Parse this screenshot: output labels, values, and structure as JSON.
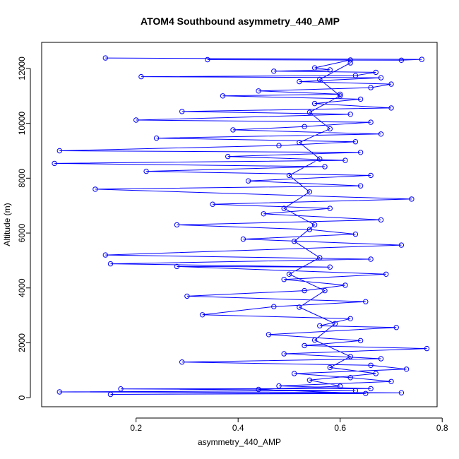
{
  "chart_data": {
    "type": "line",
    "title": "ATOM4 Southbound asymmetry_440_AMP",
    "xlabel": "asymmetry_440_AMP",
    "ylabel": "Altitude (m)",
    "xlim": [
      0.015,
      0.79
    ],
    "ylim": [
      -330,
      12950
    ],
    "x_ticks": [
      0.2,
      0.4,
      0.6,
      0.8
    ],
    "x_tick_labels": [
      "0.2",
      "0.4",
      "0.6",
      "0.8"
    ],
    "y_ticks": [
      0,
      2000,
      4000,
      6000,
      8000,
      10000,
      12000
    ],
    "y_tick_labels": [
      "0",
      "2000",
      "4000",
      "6000",
      "8000",
      "10000",
      "12000"
    ],
    "grid": false,
    "series": [
      {
        "color": "#0000ff",
        "marker": "open-circle",
        "connect": true,
        "points": [
          [
            0.14,
            12380
          ],
          [
            0.76,
            12330
          ],
          [
            0.72,
            12300
          ],
          [
            0.34,
            12320
          ],
          [
            0.62,
            12310
          ],
          [
            0.55,
            12020
          ],
          [
            0.58,
            11950
          ],
          [
            0.47,
            11900
          ],
          [
            0.67,
            11860
          ],
          [
            0.63,
            11740
          ],
          [
            0.21,
            11700
          ],
          [
            0.68,
            11660
          ],
          [
            0.52,
            11520
          ],
          [
            0.7,
            11430
          ],
          [
            0.66,
            11300
          ],
          [
            0.44,
            11180
          ],
          [
            0.6,
            11060
          ],
          [
            0.37,
            11000
          ],
          [
            0.64,
            10880
          ],
          [
            0.55,
            10720
          ],
          [
            0.7,
            10560
          ],
          [
            0.29,
            10430
          ],
          [
            0.62,
            10330
          ],
          [
            0.2,
            10120
          ],
          [
            0.66,
            10040
          ],
          [
            0.53,
            9880
          ],
          [
            0.39,
            9760
          ],
          [
            0.68,
            9610
          ],
          [
            0.24,
            9460
          ],
          [
            0.63,
            9330
          ],
          [
            0.48,
            9190
          ],
          [
            0.05,
            9000
          ],
          [
            0.64,
            8940
          ],
          [
            0.38,
            8790
          ],
          [
            0.61,
            8650
          ],
          [
            0.04,
            8540
          ],
          [
            0.57,
            8420
          ],
          [
            0.22,
            8250
          ],
          [
            0.66,
            8100
          ],
          [
            0.42,
            7900
          ],
          [
            0.64,
            7720
          ],
          [
            0.12,
            7600
          ],
          [
            0.74,
            7240
          ],
          [
            0.35,
            7050
          ],
          [
            0.58,
            6900
          ],
          [
            0.45,
            6700
          ],
          [
            0.68,
            6480
          ],
          [
            0.28,
            6300
          ],
          [
            0.54,
            6130
          ],
          [
            0.63,
            5960
          ],
          [
            0.41,
            5780
          ],
          [
            0.72,
            5560
          ],
          [
            0.14,
            5200
          ],
          [
            0.66,
            5050
          ],
          [
            0.15,
            4880
          ],
          [
            0.58,
            4760
          ],
          [
            0.28,
            4780
          ],
          [
            0.69,
            4500
          ],
          [
            0.49,
            4310
          ],
          [
            0.61,
            4100
          ],
          [
            0.53,
            3900
          ],
          [
            0.3,
            3700
          ],
          [
            0.65,
            3500
          ],
          [
            0.47,
            3320
          ],
          [
            0.33,
            3020
          ],
          [
            0.62,
            2880
          ],
          [
            0.56,
            2620
          ],
          [
            0.71,
            2560
          ],
          [
            0.46,
            2300
          ],
          [
            0.64,
            2080
          ],
          [
            0.53,
            1900
          ],
          [
            0.77,
            1790
          ],
          [
            0.49,
            1600
          ],
          [
            0.68,
            1420
          ],
          [
            0.29,
            1300
          ],
          [
            0.66,
            1180
          ],
          [
            0.73,
            1040
          ],
          [
            0.51,
            880
          ],
          [
            0.62,
            730
          ],
          [
            0.7,
            590
          ],
          [
            0.48,
            430
          ],
          [
            0.66,
            330
          ],
          [
            0.17,
            320
          ],
          [
            0.63,
            260
          ],
          [
            0.05,
            210
          ],
          [
            0.72,
            180
          ],
          [
            0.15,
            120
          ],
          [
            0.65,
            150
          ],
          [
            0.44,
            300
          ],
          [
            0.6,
            420
          ],
          [
            0.54,
            640
          ],
          [
            0.67,
            880
          ],
          [
            0.58,
            1100
          ],
          [
            0.62,
            1500
          ],
          [
            0.55,
            2100
          ],
          [
            0.59,
            2700
          ],
          [
            0.52,
            3300
          ],
          [
            0.57,
            3900
          ],
          [
            0.5,
            4500
          ],
          [
            0.56,
            5100
          ],
          [
            0.51,
            5700
          ],
          [
            0.55,
            6300
          ],
          [
            0.49,
            6900
          ],
          [
            0.54,
            7500
          ],
          [
            0.5,
            8100
          ],
          [
            0.56,
            8700
          ],
          [
            0.52,
            9300
          ],
          [
            0.58,
            9800
          ],
          [
            0.54,
            10400
          ],
          [
            0.6,
            11000
          ],
          [
            0.56,
            11600
          ],
          [
            0.62,
            12200
          ]
        ]
      }
    ]
  }
}
